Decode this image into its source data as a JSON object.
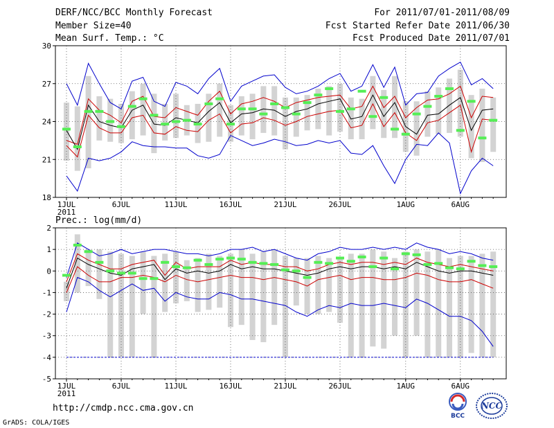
{
  "header": {
    "left": [
      "DERF/NCC/BCC Monthly Forecast",
      "Member Size=40",
      "Mean Surf. Temp.: °C"
    ],
    "right": [
      "For 2011/07/01-2011/08/09",
      "Fcst Started Refer Date 2011/06/30",
      "Fcst Produced Date 2011/07/01"
    ]
  },
  "footer": {
    "url": "http://cmdp.ncc.cma.gov.cn",
    "credit": "GrADS: COLA/IGES",
    "logo_bcc": "BCC",
    "logo_ncc": "NCC"
  },
  "colors": {
    "max": "#0000cc",
    "min": "#0000cc",
    "spread": "#cc0000",
    "mean": "#000000",
    "box": "#d3d3d3",
    "obs": "#55ee55"
  },
  "chart_data": [
    {
      "type": "line",
      "name": "temperature",
      "title": "Mean Surf. Temp.: °C",
      "ylim": [
        18,
        30
      ],
      "yticks": [
        18,
        21,
        24,
        27,
        30
      ],
      "xticks": [
        {
          "day": 1,
          "label": "1JUL",
          "sub": "2011"
        },
        {
          "day": 6,
          "label": "6JUL"
        },
        {
          "day": 11,
          "label": "11JUL"
        },
        {
          "day": 16,
          "label": "16JUL"
        },
        {
          "day": 21,
          "label": "21JUL"
        },
        {
          "day": 26,
          "label": "26JUL"
        },
        {
          "day": 32,
          "label": "1AUG"
        },
        {
          "day": 37,
          "label": "6AUG"
        }
      ],
      "days": 40,
      "series": [
        {
          "name": "max",
          "values": [
            27.0,
            25.3,
            28.6,
            27.0,
            25.5,
            25.0,
            27.2,
            27.5,
            25.6,
            25.2,
            27.1,
            26.8,
            26.2,
            27.4,
            28.2,
            25.6,
            26.8,
            27.2,
            27.6,
            27.7,
            26.7,
            26.2,
            26.4,
            26.8,
            27.4,
            27.8,
            26.4,
            26.8,
            28.5,
            26.7,
            28.3,
            25.3,
            26.2,
            26.3,
            27.6,
            28.2,
            28.7,
            26.9,
            27.4,
            26.6
          ]
        },
        {
          "name": "upper",
          "values": [
            22.5,
            22.2,
            25.8,
            24.9,
            24.5,
            23.9,
            25.6,
            26.0,
            24.4,
            24.3,
            25.1,
            24.8,
            24.5,
            25.6,
            26.4,
            24.6,
            25.4,
            25.6,
            25.9,
            25.6,
            25.1,
            25.5,
            25.7,
            25.9,
            26.0,
            26.1,
            25.0,
            25.2,
            26.8,
            25.1,
            26.0,
            24.3,
            25.1,
            25.7,
            25.8,
            26.2,
            26.8,
            24.3,
            26.0,
            25.9
          ]
        },
        {
          "name": "mean",
          "values": [
            23.3,
            21.8,
            25.3,
            24.0,
            23.7,
            23.5,
            24.9,
            25.3,
            23.8,
            23.7,
            24.3,
            24.1,
            23.9,
            24.8,
            25.5,
            23.9,
            24.6,
            24.7,
            25.0,
            24.9,
            24.4,
            24.8,
            25.0,
            25.4,
            25.6,
            25.8,
            24.2,
            24.4,
            26.1,
            24.4,
            25.5,
            23.6,
            23.0,
            24.5,
            24.6,
            25.3,
            25.9,
            23.3,
            24.9,
            25.0
          ]
        },
        {
          "name": "lower",
          "values": [
            22.1,
            21.2,
            24.5,
            23.5,
            23.1,
            23.1,
            24.3,
            24.5,
            23.1,
            23.0,
            23.6,
            23.3,
            23.2,
            24.1,
            24.6,
            23.1,
            23.8,
            23.9,
            24.3,
            24.1,
            23.7,
            24.0,
            24.4,
            24.6,
            24.8,
            24.9,
            23.5,
            23.7,
            25.4,
            23.6,
            24.7,
            23.1,
            22.5,
            23.9,
            24.1,
            24.7,
            25.3,
            21.6,
            24.2,
            24.1
          ]
        },
        {
          "name": "min",
          "values": [
            19.7,
            18.5,
            21.1,
            20.9,
            21.1,
            21.6,
            22.4,
            22.1,
            22.0,
            22.0,
            21.9,
            21.9,
            21.3,
            21.1,
            21.4,
            22.9,
            22.5,
            22.1,
            22.3,
            22.6,
            22.4,
            22.1,
            22.2,
            22.5,
            22.3,
            22.5,
            21.5,
            21.4,
            22.1,
            20.5,
            19.1,
            21.0,
            22.2,
            22.1,
            23.1,
            22.3,
            18.3,
            20.1,
            21.1,
            20.5
          ]
        }
      ],
      "box": {
        "top": [
          25.5,
          25.2,
          27.6,
          26.0,
          25.8,
          25.4,
          26.4,
          27.0,
          26.2,
          25.4,
          26.2,
          25.3,
          25.4,
          26.2,
          27.0,
          25.3,
          26.0,
          26.2,
          26.8,
          26.8,
          25.9,
          25.9,
          26.1,
          26.6,
          26.8,
          27.0,
          25.9,
          25.8,
          27.6,
          26.5,
          27.6,
          25.6,
          25.6,
          26.4,
          26.7,
          27.4,
          28.1,
          26.1,
          26.6,
          25.9
        ],
        "bottom": [
          20.9,
          20.1,
          20.3,
          22.5,
          22.4,
          22.3,
          22.6,
          22.9,
          21.5,
          22.5,
          22.7,
          22.9,
          22.3,
          22.4,
          22.8,
          22.4,
          22.9,
          22.6,
          23.1,
          22.9,
          21.8,
          22.8,
          23.3,
          23.4,
          22.9,
          23.2,
          22.6,
          22.6,
          23.4,
          22.7,
          22.7,
          21.6,
          21.3,
          22.8,
          23.0,
          23.1,
          22.8,
          21.1,
          20.8,
          21.6
        ]
      },
      "obs": [
        23.4,
        22.0,
        24.8,
        24.8,
        24.0,
        23.6,
        25.2,
        25.8,
        24.5,
        23.8,
        24.0,
        24.1,
        23.8,
        25.4,
        25.8,
        23.8,
        25.0,
        25.0,
        24.6,
        25.4,
        25.1,
        24.6,
        25.5,
        26.1,
        26.6,
        24.8,
        25.0,
        26.4,
        24.4,
        25.9,
        23.4,
        23.0,
        24.6,
        25.2,
        26.0,
        26.6,
        23.3,
        25.6,
        22.7,
        24.1
      ]
    },
    {
      "type": "line",
      "name": "precipitation",
      "title": "Prec.: log(mm/d)",
      "ylim": [
        -5,
        2
      ],
      "yticks": [
        -5,
        -4,
        -3,
        -2,
        -1,
        0,
        1,
        2
      ],
      "xticks": [
        {
          "day": 1,
          "label": "1JUL",
          "sub": "2011"
        },
        {
          "day": 6,
          "label": "6JUL"
        },
        {
          "day": 11,
          "label": "11JUL"
        },
        {
          "day": 16,
          "label": "16JUL"
        },
        {
          "day": 21,
          "label": "21JUL"
        },
        {
          "day": 26,
          "label": "26JUL"
        },
        {
          "day": 32,
          "label": "1AUG"
        },
        {
          "day": 37,
          "label": "6AUG"
        }
      ],
      "days": 40,
      "series": [
        {
          "name": "max",
          "values": [
            -0.3,
            1.3,
            1.0,
            0.7,
            0.8,
            1.0,
            0.8,
            0.9,
            1.0,
            1.0,
            0.9,
            0.8,
            0.8,
            0.7,
            0.8,
            1.0,
            1.0,
            1.1,
            0.9,
            1.0,
            0.8,
            0.6,
            0.5,
            0.8,
            0.9,
            1.1,
            1.0,
            1.0,
            1.1,
            1.0,
            1.1,
            1.0,
            1.3,
            1.1,
            1.0,
            0.8,
            0.9,
            0.8,
            0.6,
            0.5
          ]
        },
        {
          "name": "upper",
          "values": [
            -0.5,
            0.8,
            0.5,
            0.3,
            0.1,
            0.1,
            0.3,
            0.4,
            0.5,
            -0.2,
            0.4,
            0.1,
            0.2,
            0.2,
            0.2,
            0.5,
            0.3,
            0.4,
            0.3,
            0.3,
            0.2,
            0.2,
            0.0,
            0.1,
            0.3,
            0.4,
            0.3,
            0.4,
            0.4,
            0.3,
            0.4,
            0.3,
            0.6,
            0.4,
            0.3,
            0.2,
            0.3,
            0.2,
            0.1,
            0.0
          ]
        },
        {
          "name": "mean",
          "values": [
            -0.8,
            0.6,
            0.3,
            0.1,
            -0.1,
            -0.2,
            0.1,
            0.2,
            0.3,
            -0.4,
            0.1,
            -0.1,
            0.0,
            -0.1,
            0.0,
            0.3,
            0.1,
            0.2,
            0.1,
            0.1,
            0.0,
            -0.1,
            -0.2,
            -0.1,
            0.1,
            0.2,
            0.1,
            0.2,
            0.2,
            0.1,
            0.2,
            0.1,
            0.4,
            0.2,
            0.0,
            -0.1,
            0.0,
            0.0,
            -0.1,
            -0.2
          ]
        },
        {
          "name": "lower",
          "values": [
            -1.0,
            0.2,
            -0.2,
            -0.5,
            -0.5,
            -0.3,
            -0.3,
            -0.2,
            -0.3,
            -0.5,
            -0.2,
            -0.4,
            -0.5,
            -0.4,
            -0.3,
            -0.2,
            -0.3,
            -0.3,
            -0.4,
            -0.3,
            -0.4,
            -0.5,
            -0.7,
            -0.4,
            -0.3,
            -0.2,
            -0.4,
            -0.3,
            -0.3,
            -0.4,
            -0.4,
            -0.3,
            -0.1,
            -0.2,
            -0.4,
            -0.5,
            -0.5,
            -0.4,
            -0.6,
            -0.8
          ]
        },
        {
          "name": "min",
          "values": [
            -1.9,
            -0.3,
            -0.5,
            -0.9,
            -1.2,
            -0.9,
            -0.6,
            -0.9,
            -0.8,
            -1.4,
            -1.0,
            -1.2,
            -1.3,
            -1.3,
            -1.0,
            -1.1,
            -1.3,
            -1.3,
            -1.4,
            -1.5,
            -1.6,
            -1.9,
            -2.1,
            -1.8,
            -1.6,
            -1.7,
            -1.5,
            -1.6,
            -1.6,
            -1.5,
            -1.6,
            -1.7,
            -1.3,
            -1.5,
            -1.8,
            -2.1,
            -2.1,
            -2.3,
            -2.8,
            -3.5
          ]
        }
      ],
      "box": {
        "top": [
          -0.5,
          1.7,
          1.0,
          1.0,
          0.9,
          0.8,
          0.7,
          0.9,
          0.7,
          0.8,
          0.9,
          0.5,
          0.6,
          0.8,
          0.7,
          0.8,
          1.0,
          0.8,
          0.9,
          1.0,
          0.7,
          0.6,
          0.6,
          0.7,
          0.6,
          0.6,
          0.8,
          0.8,
          1.0,
          0.9,
          0.6,
          0.9,
          1.0,
          0.9,
          1.0,
          0.6,
          0.7,
          0.7,
          0.8,
          0.9
        ],
        "bottom": [
          -1.4,
          -1.0,
          -0.7,
          -1.3,
          -4.0,
          -4.0,
          -4.0,
          -2.0,
          -4.0,
          -1.9,
          -1.5,
          -1.4,
          -1.9,
          -1.8,
          -1.7,
          -2.6,
          -2.5,
          -3.2,
          -3.3,
          -2.5,
          -4.0,
          -1.6,
          -2.0,
          -2.0,
          -1.9,
          -2.4,
          -4.0,
          -4.0,
          -3.5,
          -3.6,
          -3.0,
          -4.0,
          -3.0,
          -4.0,
          -4.0,
          -4.0,
          -4.0,
          -3.8,
          -4.0,
          -4.0
        ]
      },
      "obs": [
        -0.2,
        1.2,
        0.9,
        0.4,
        0.0,
        -0.1,
        -0.1,
        -0.35,
        -0.35,
        0.4,
        0.2,
        0.15,
        0.5,
        0.3,
        0.55,
        0.6,
        0.55,
        0.4,
        0.35,
        0.3,
        0.05,
        0.0,
        -0.3,
        0.4,
        0.35,
        0.6,
        0.45,
        0.65,
        0.2,
        0.6,
        0.1,
        0.8,
        0.75,
        0.3,
        0.35,
        0.15,
        0.1,
        0.45,
        0.25,
        0.2
      ],
      "floor": -4
    }
  ]
}
